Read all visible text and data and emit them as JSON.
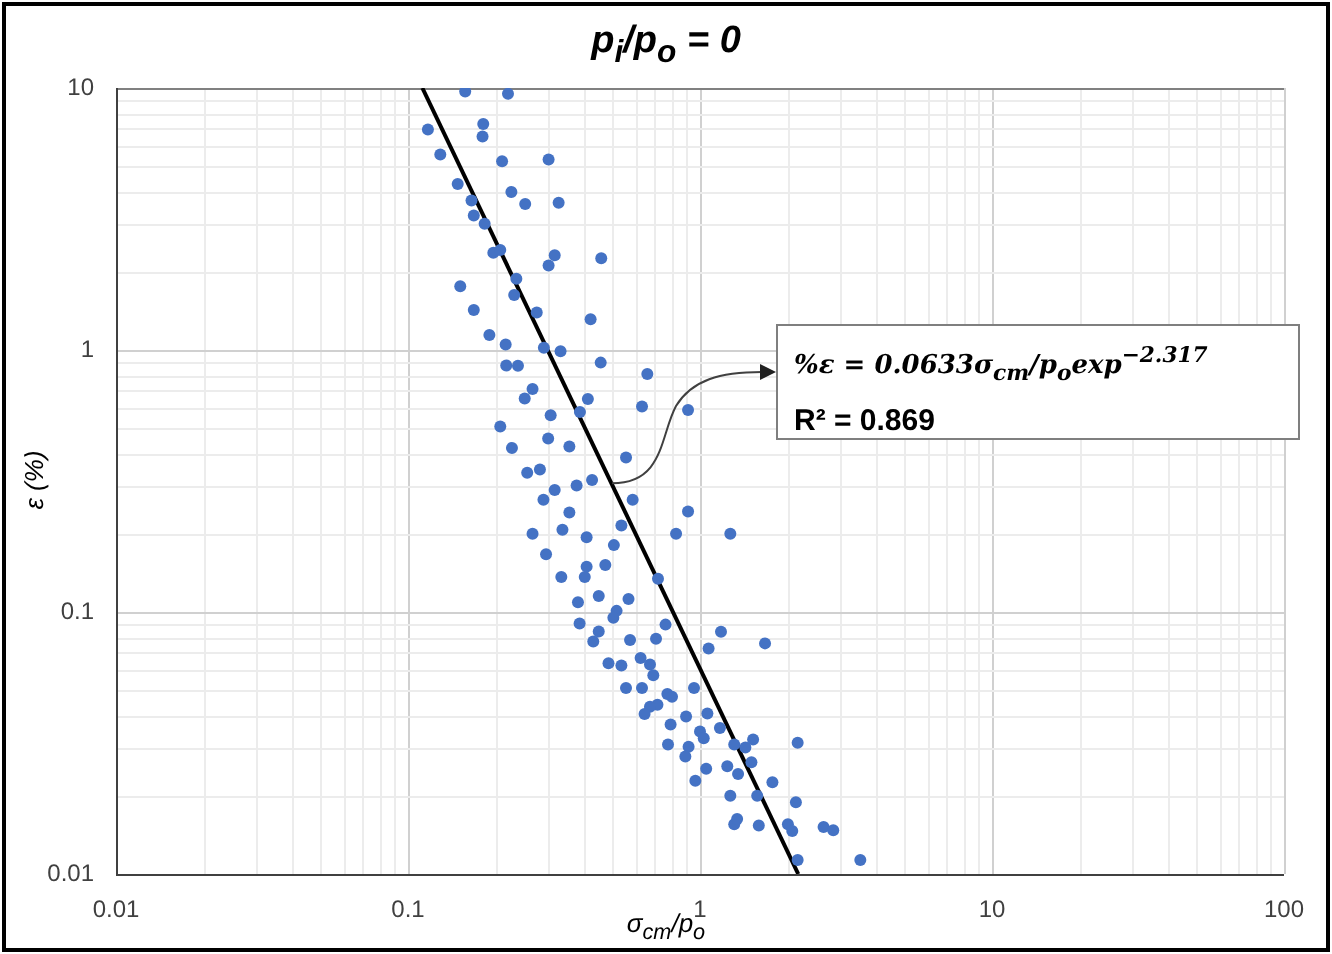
{
  "chart_data": {
    "type": "scatter",
    "title": "p$_{i}$/p$_{o}$ = 0",
    "xlabel": "σ$_{cm}$/p$_{o}$",
    "ylabel": "ε (%)",
    "log": "xy",
    "grid": true,
    "marker": "circle",
    "xlim": [
      0.01,
      100
    ],
    "xticks": [
      0.01,
      0.1,
      1,
      10,
      100
    ],
    "ylim": [
      0.01,
      10
    ],
    "yticks": [
      0.01,
      0.1,
      1,
      10
    ],
    "annotations": [
      {
        "text": "%ε = 0.0633σ$_{cm}$/p$_{o}$exp$^{−2.317}$",
        "x": 0.5,
        "y": 0.31
      },
      "R² = 0.869"
    ],
    "series": [
      {
        "color": "#4472c4",
        "x": [
          0.157,
          0.22,
          0.117,
          0.181,
          0.18,
          0.129,
          0.21,
          0.303,
          0.148,
          0.226,
          0.252,
          0.328,
          0.165,
          0.168,
          0.183,
          0.196,
          0.207,
          0.318,
          0.303,
          0.459,
          0.235,
          0.151,
          0.231,
          0.168,
          0.276,
          0.422,
          0.19,
          0.216,
          0.292,
          0.333,
          0.217,
          0.238,
          0.457,
          0.66,
          0.267,
          0.251,
          0.413,
          0.308,
          0.388,
          0.633,
          0.91,
          0.207,
          0.302,
          0.227,
          0.357,
          0.558,
          0.256,
          0.283,
          0.427,
          0.318,
          0.291,
          0.378,
          0.588,
          0.357,
          0.91,
          0.267,
          0.338,
          0.538,
          0.409,
          0.828,
          1.27,
          0.507,
          0.297,
          0.409,
          0.474,
          0.718,
          0.335,
          0.403,
          0.45,
          0.569,
          0.382,
          0.518,
          0.505,
          0.762,
          0.387,
          0.45,
          1.18,
          0.576,
          0.707,
          0.431,
          1.67,
          1.07,
          0.486,
          0.538,
          0.626,
          0.674,
          0.692,
          0.558,
          0.633,
          0.954,
          0.773,
          0.802,
          0.715,
          0.674,
          0.646,
          0.896,
          1.06,
          1.17,
          0.793,
          1.0,
          1.03,
          0.914,
          0.777,
          1.31,
          1.43,
          1.52,
          2.16,
          0.891,
          1.24,
          1.05,
          1.5,
          1.35,
          0.964,
          1.77,
          1.27,
          1.57,
          2.13,
          1.31,
          1.34,
          1.59,
          2.0,
          2.07,
          2.65,
          2.86,
          2.16,
          3.54
        ],
        "values": [
          9.7,
          9.5,
          6.95,
          7.29,
          6.53,
          5.57,
          5.25,
          5.34,
          4.3,
          4.01,
          3.61,
          3.65,
          3.72,
          3.26,
          3.03,
          2.35,
          2.41,
          2.3,
          2.1,
          2.24,
          1.87,
          1.75,
          1.62,
          1.42,
          1.39,
          1.31,
          1.14,
          1.05,
          1.02,
          0.99,
          0.873,
          0.87,
          0.895,
          0.81,
          0.71,
          0.653,
          0.65,
          0.563,
          0.58,
          0.608,
          0.59,
          0.51,
          0.459,
          0.423,
          0.428,
          0.389,
          0.34,
          0.35,
          0.319,
          0.292,
          0.268,
          0.304,
          0.268,
          0.24,
          0.242,
          0.199,
          0.206,
          0.214,
          0.193,
          0.199,
          0.199,
          0.18,
          0.166,
          0.149,
          0.151,
          0.134,
          0.136,
          0.136,
          0.115,
          0.112,
          0.109,
          0.101,
          0.095,
          0.0895,
          0.0904,
          0.0843,
          0.084,
          0.0782,
          0.079,
          0.0772,
          0.0759,
          0.0725,
          0.0637,
          0.0625,
          0.0668,
          0.063,
          0.0573,
          0.0513,
          0.0513,
          0.0513,
          0.0486,
          0.0475,
          0.0443,
          0.0435,
          0.0408,
          0.0399,
          0.041,
          0.0361,
          0.0372,
          0.035,
          0.033,
          0.0306,
          0.0312,
          0.0312,
          0.0304,
          0.0326,
          0.0317,
          0.0281,
          0.0258,
          0.0252,
          0.0267,
          0.0241,
          0.0227,
          0.0224,
          0.0199,
          0.0199,
          0.0188,
          0.0155,
          0.0162,
          0.0153,
          0.0155,
          0.0146,
          0.0151,
          0.0147,
          0.0113,
          0.0113
        ]
      },
      {
        "type": "line",
        "marker": "none",
        "color": "#000000",
        "x": [
          0.112,
          2.17
        ],
        "values": [
          10,
          0.01
        ]
      }
    ]
  }
}
